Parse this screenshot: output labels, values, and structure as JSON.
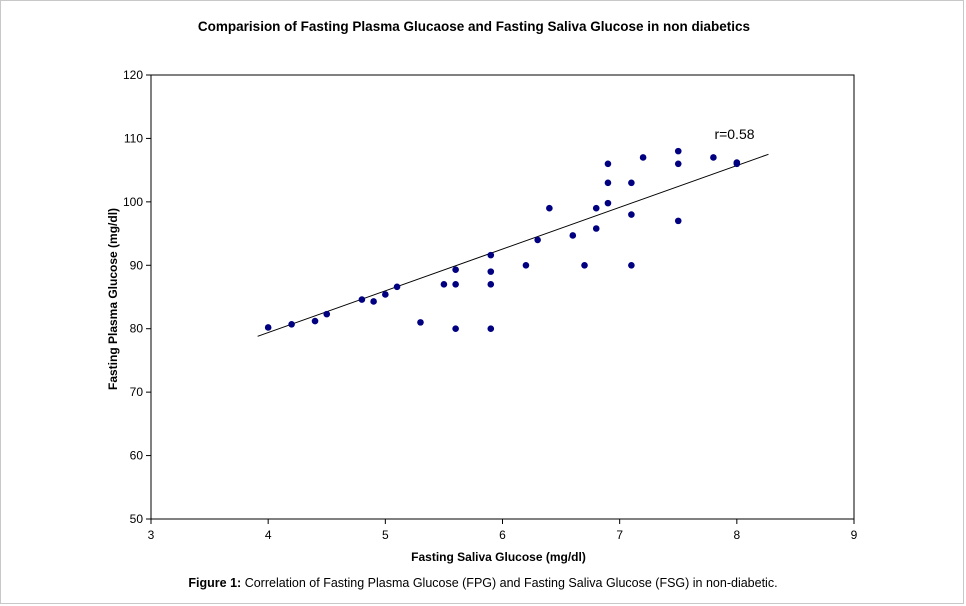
{
  "chart_data": {
    "type": "scatter",
    "title": "Comparision of Fasting Plasma Glucaose and Fasting Saliva Glucose in non diabetics",
    "xlabel": "Fasting Saliva Glucose (mg/dl)",
    "ylabel": "Fasting Plasma Glucose (mg/dl)",
    "xlim": [
      3,
      9
    ],
    "ylim": [
      50,
      120
    ],
    "xticks": [
      "3",
      "4",
      "5",
      "6",
      "7",
      "8",
      "9"
    ],
    "yticks": [
      "50",
      "60",
      "70",
      "80",
      "90",
      "100",
      "110",
      "120"
    ],
    "grid": false,
    "marker_color": "#000080",
    "points": [
      {
        "x": 4.0,
        "y": 80.2
      },
      {
        "x": 4.2,
        "y": 80.7
      },
      {
        "x": 4.4,
        "y": 81.2
      },
      {
        "x": 4.5,
        "y": 82.3
      },
      {
        "x": 4.8,
        "y": 84.6
      },
      {
        "x": 4.9,
        "y": 84.3
      },
      {
        "x": 5.0,
        "y": 85.4
      },
      {
        "x": 5.1,
        "y": 86.6
      },
      {
        "x": 5.3,
        "y": 81.0
      },
      {
        "x": 5.5,
        "y": 87.0
      },
      {
        "x": 5.6,
        "y": 87.0
      },
      {
        "x": 5.6,
        "y": 89.3
      },
      {
        "x": 5.6,
        "y": 80.0
      },
      {
        "x": 5.9,
        "y": 91.6
      },
      {
        "x": 5.9,
        "y": 89.0
      },
      {
        "x": 5.9,
        "y": 87.0
      },
      {
        "x": 5.9,
        "y": 80.0
      },
      {
        "x": 6.2,
        "y": 90.0
      },
      {
        "x": 6.3,
        "y": 94.0
      },
      {
        "x": 6.4,
        "y": 99.0
      },
      {
        "x": 6.6,
        "y": 94.7
      },
      {
        "x": 6.7,
        "y": 90.0
      },
      {
        "x": 6.8,
        "y": 99.0
      },
      {
        "x": 6.8,
        "y": 95.8
      },
      {
        "x": 6.9,
        "y": 106.0
      },
      {
        "x": 6.9,
        "y": 103.0
      },
      {
        "x": 6.9,
        "y": 99.8
      },
      {
        "x": 7.1,
        "y": 103.0
      },
      {
        "x": 7.1,
        "y": 98.0
      },
      {
        "x": 7.1,
        "y": 90.0
      },
      {
        "x": 7.2,
        "y": 107.0
      },
      {
        "x": 7.5,
        "y": 108.0
      },
      {
        "x": 7.5,
        "y": 106.0
      },
      {
        "x": 7.5,
        "y": 97.0
      },
      {
        "x": 7.8,
        "y": 107.0
      },
      {
        "x": 8.0,
        "y": 106.2
      },
      {
        "x": 8.0,
        "y": 106.0
      }
    ],
    "trendline": {
      "x1": 3.91,
      "y1": 78.8,
      "x2": 8.27,
      "y2": 107.5
    },
    "annotation": "r=0.58"
  },
  "caption": {
    "label": "Figure 1:",
    "text": " Correlation of Fasting Plasma Glucose (FPG) and Fasting Saliva Glucose (FSG) in non-diabetic."
  }
}
